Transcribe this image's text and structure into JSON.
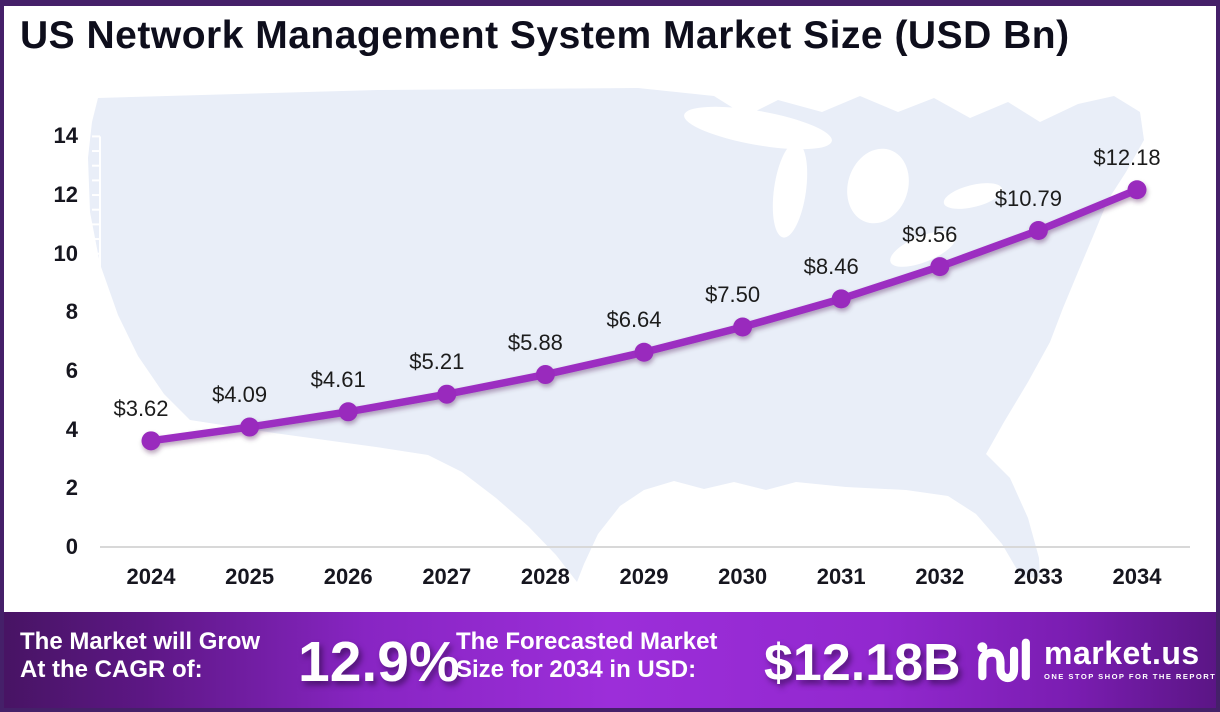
{
  "header": {
    "title": "US Network Management System Market Size (USD Bn)"
  },
  "chart_data": {
    "type": "line",
    "title": "US Network Management System Market Size (USD Bn)",
    "categories": [
      "2024",
      "2025",
      "2026",
      "2027",
      "2028",
      "2029",
      "2030",
      "2031",
      "2032",
      "2033",
      "2034"
    ],
    "series": [
      {
        "name": "US Network Management System Market Size (USD Bn)",
        "values": [
          3.62,
          4.09,
          4.61,
          5.21,
          5.88,
          6.64,
          7.5,
          8.46,
          9.56,
          10.79,
          12.18
        ]
      }
    ],
    "point_labels": [
      "$3.62",
      "$4.09",
      "$4.61",
      "$5.21",
      "$5.88",
      "$6.64",
      "$7.50",
      "$8.46",
      "$9.56",
      "$10.79",
      "$12.18"
    ],
    "xlabel": "",
    "ylabel": "",
    "ylim": [
      0,
      14
    ],
    "y_ticks": [
      0,
      2,
      4,
      6,
      8,
      10,
      12,
      14
    ],
    "grid": false,
    "legend": "none",
    "background": "us-map-silhouette"
  },
  "footer": {
    "cagr_label_line1": "The Market will Grow",
    "cagr_label_line2": "At the CAGR of:",
    "cagr_value": "12.9%",
    "forecast_label_line1": "The Forecasted Market",
    "forecast_label_line2": "Size for 2034 in USD:",
    "forecast_value": "$12.18B",
    "brand": {
      "name": "market.us",
      "tagline": "ONE STOP SHOP FOR THE REPORTS"
    }
  },
  "colors": {
    "accent_purple": "#9C2FC1",
    "dot_purple": "#992BBD",
    "frame_border": "#452069",
    "map_fill": "#E9EEF8",
    "baseline_gray": "#D8D8D8",
    "footer_gradient_mid": "#9C2ED9"
  }
}
